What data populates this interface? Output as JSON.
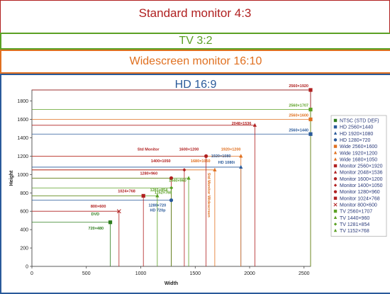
{
  "bands": {
    "standard": "Standard monitor 4:3",
    "tv": "TV 3:2",
    "widescreen": "Widescreen monitor 16:10",
    "hd": "HD 16:9"
  },
  "chart_data": {
    "type": "scatter",
    "xlabel": "Width",
    "ylabel": "Height",
    "xlim": [
      0,
      2560
    ],
    "ylim": [
      0,
      1920
    ],
    "xticks": [
      0,
      500,
      1000,
      1500,
      2000,
      2500
    ],
    "yticks": [
      0,
      200,
      400,
      600,
      800,
      1000,
      1200,
      1400,
      1600,
      1800
    ],
    "grid": false,
    "legend_position": "right",
    "series": [
      {
        "name": "NTSC (STD DEF)",
        "color": "#2e7d1e",
        "marker": "square",
        "points": [
          [
            720,
            480
          ]
        ]
      },
      {
        "name": "HD 2560×1440",
        "color": "#2a5a9a",
        "marker": "square",
        "points": [
          [
            2560,
            1440
          ]
        ]
      },
      {
        "name": "HD 1920×1080",
        "color": "#2a5a9a",
        "marker": "triangle",
        "points": [
          [
            1920,
            1080
          ]
        ]
      },
      {
        "name": "HD 1280×720",
        "color": "#2a5a9a",
        "marker": "circle",
        "points": [
          [
            1280,
            720
          ]
        ]
      },
      {
        "name": "Wide 2560×1600",
        "color": "#e07020",
        "marker": "square",
        "points": [
          [
            2560,
            1600
          ]
        ]
      },
      {
        "name": "Wide 1920×1200",
        "color": "#e07020",
        "marker": "triangle",
        "points": [
          [
            1920,
            1200
          ]
        ]
      },
      {
        "name": "Wide 1680×1050",
        "color": "#e07020",
        "marker": "triangle",
        "points": [
          [
            1680,
            1050
          ]
        ]
      },
      {
        "name": "Monitor 2560×1920",
        "color": "#b02020",
        "marker": "square",
        "points": [
          [
            2560,
            1920
          ]
        ]
      },
      {
        "name": "Monitor 2048×1536",
        "color": "#b02020",
        "marker": "triangle",
        "points": [
          [
            2048,
            1536
          ]
        ]
      },
      {
        "name": "Monitor 1600×1200",
        "color": "#b02020",
        "marker": "circle",
        "points": [
          [
            1600,
            1200
          ]
        ]
      },
      {
        "name": "Monitor 1400×1050",
        "color": "#b02020",
        "marker": "diamond",
        "points": [
          [
            1400,
            1050
          ]
        ]
      },
      {
        "name": "Monitor 1280×960",
        "color": "#b02020",
        "marker": "circle",
        "points": [
          [
            1280,
            960
          ]
        ]
      },
      {
        "name": "Monitor 1024×768",
        "color": "#b02020",
        "marker": "square",
        "points": [
          [
            1024,
            768
          ]
        ]
      },
      {
        "name": "Monitor 800×600",
        "color": "#b02020",
        "marker": "x",
        "points": [
          [
            800,
            600
          ]
        ]
      },
      {
        "name": "TV 2560×1707",
        "color": "#5ba024",
        "marker": "square",
        "points": [
          [
            2560,
            1707
          ]
        ]
      },
      {
        "name": "TV 1440×960",
        "color": "#5ba024",
        "marker": "triangle",
        "points": [
          [
            1440,
            960
          ]
        ]
      },
      {
        "name": "TV 1281×854",
        "color": "#5ba024",
        "marker": "diamond",
        "points": [
          [
            1281,
            854
          ]
        ]
      },
      {
        "name": "TV 1152×768",
        "color": "#5ba024",
        "marker": "triangle",
        "points": [
          [
            1152,
            768
          ]
        ]
      }
    ],
    "annotations": [
      {
        "text": "2560×1920",
        "x": 2560,
        "y": 1920,
        "color": "#b02020"
      },
      {
        "text": "2560×1707",
        "x": 2560,
        "y": 1707,
        "color": "#5ba024"
      },
      {
        "text": "2560×1600",
        "x": 2560,
        "y": 1600,
        "color": "#e07020"
      },
      {
        "text": "2560×1440",
        "x": 2560,
        "y": 1440,
        "color": "#2a5a9a"
      },
      {
        "text": "2048×1536",
        "x": 2048,
        "y": 1536,
        "color": "#b02020"
      },
      {
        "text": "Std Monitor",
        "x": 1400,
        "y": 1200,
        "color": "#b02020"
      },
      {
        "text": "1600×1200",
        "x": 1600,
        "y": 1200,
        "color": "#b02020"
      },
      {
        "text": "1920×1200",
        "x": 1920,
        "y": 1200,
        "color": "#e07020"
      },
      {
        "text": "1400×1050",
        "x": 1400,
        "y": 1050,
        "color": "#b02020"
      },
      {
        "text": "1920×1080",
        "x": 1920,
        "y": 1080,
        "color": "#2a5a9a"
      },
      {
        "text": "HD 1080i",
        "x": 1920,
        "y": 1080,
        "color": "#2a5a9a"
      },
      {
        "text": "1280×960",
        "x": 1280,
        "y": 960,
        "color": "#b02020"
      },
      {
        "text": "1680×1050",
        "x": 1680,
        "y": 1050,
        "color": "#e07020"
      },
      {
        "text": "1440×960",
        "x": 1440,
        "y": 960,
        "color": "#5ba024"
      },
      {
        "text": "1281×854",
        "x": 1281,
        "y": 854,
        "color": "#5ba024"
      },
      {
        "text": "1024×768",
        "x": 1024,
        "y": 768,
        "color": "#b02020"
      },
      {
        "text": "1152×768",
        "x": 1152,
        "y": 768,
        "color": "#5ba024"
      },
      {
        "text": "1280×720",
        "x": 1280,
        "y": 720,
        "color": "#2a5a9a"
      },
      {
        "text": "HD 720p",
        "x": 1280,
        "y": 720,
        "color": "#2a5a9a"
      },
      {
        "text": "800×600",
        "x": 800,
        "y": 600,
        "color": "#b02020"
      },
      {
        "text": "DVD",
        "x": 720,
        "y": 480,
        "color": "#2e7d1e"
      },
      {
        "text": "720×480",
        "x": 720,
        "y": 480,
        "color": "#2e7d1e"
      },
      {
        "text": "Std Monitor Widescreen",
        "x": 1680,
        "y": 1050,
        "color": "#e07020"
      }
    ]
  }
}
